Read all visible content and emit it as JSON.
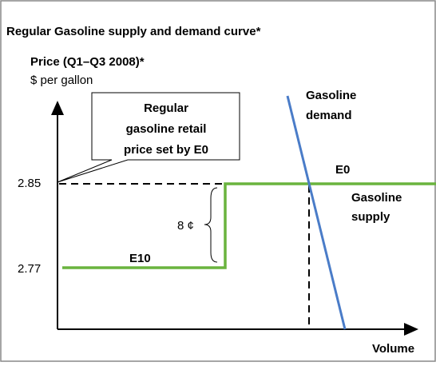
{
  "title": "Regular Gasoline supply and demand curve*",
  "y_axis": {
    "label": "Price (Q1–Q3 2008)*",
    "unit": "$ per gallon",
    "ticks": [
      "2.85",
      "2.77"
    ]
  },
  "x_axis": {
    "label": "Volume"
  },
  "callout": {
    "lines": [
      "Regular",
      "gasoline retail",
      "price  set by E0"
    ]
  },
  "demand": {
    "lines": [
      "Gasoline",
      "demand"
    ]
  },
  "supply": {
    "lines": [
      "Gasoline",
      "supply"
    ]
  },
  "points": {
    "e0": "E0",
    "e10": "E10"
  },
  "gap": "8 ¢"
}
